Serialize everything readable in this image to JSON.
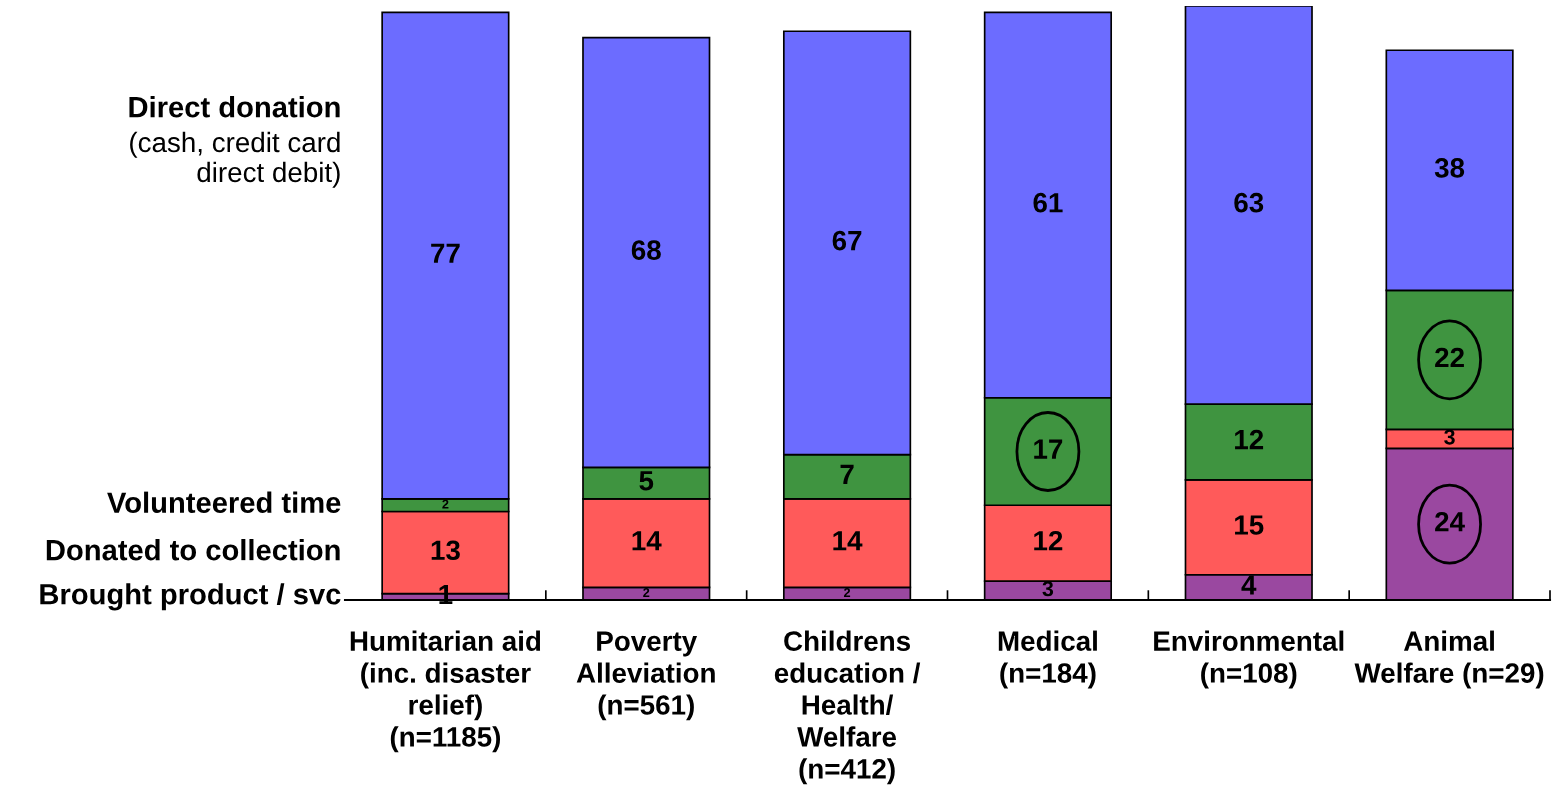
{
  "chart_data": {
    "type": "bar",
    "stacked": true,
    "data_labels": true,
    "tick_labels": "x",
    "categories": [
      "Humitarian aid\n(inc. disaster\nrelief)\n(n=1185)",
      "Poverty\nAlleviation\n(n=561)",
      "Childrens\neducation /\nHealth/\nWelfare\n(n=412)",
      "Medical\n(n=184)",
      "Environmental\n(n=108)",
      "Animal\nWelfare (n=29)"
    ],
    "series": [
      {
        "name": "Brought product / svc",
        "color": "#9a48a0",
        "values": [
          1,
          2,
          2,
          3,
          4,
          24
        ]
      },
      {
        "name": "Donated to collection",
        "color": "#ff5a5a",
        "values": [
          13,
          14,
          14,
          12,
          15,
          3
        ]
      },
      {
        "name": "Volunteered time",
        "color": "#3f9440",
        "values": [
          2,
          5,
          7,
          17,
          12,
          22
        ]
      },
      {
        "name": "Direct donation",
        "color": "#6c6cff",
        "values": [
          77,
          68,
          67,
          61,
          63,
          38
        ]
      }
    ],
    "annotations": [
      "(cash, credit card\ndirect debit)"
    ]
  }
}
